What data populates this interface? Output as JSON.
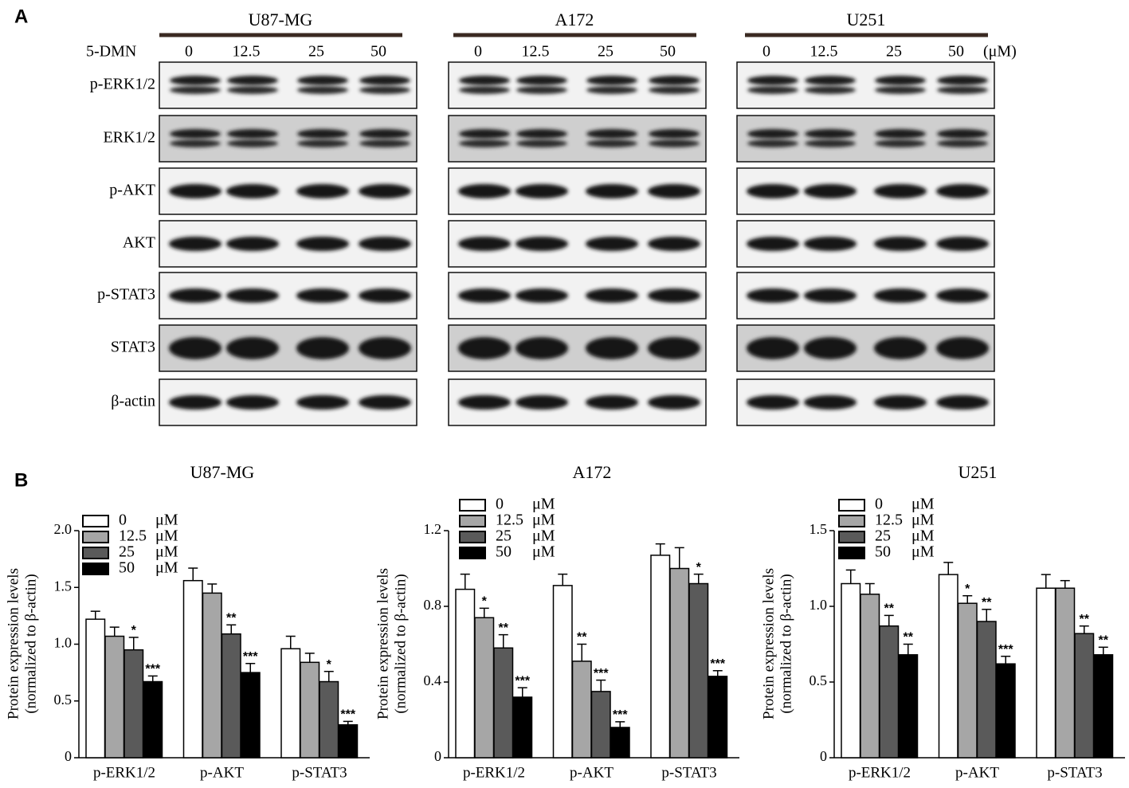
{
  "panel_a": {
    "label": "A",
    "treatment": "5-DMN",
    "unit": "(μM)",
    "cell_lines": [
      "U87-MG",
      "A172",
      "U251"
    ],
    "doses": [
      "0",
      "12.5",
      "25",
      "50"
    ],
    "proteins": [
      "p-ERK1/2",
      "ERK1/2",
      "p-AKT",
      "AKT",
      "p-STAT3",
      "STAT3",
      "β-actin"
    ]
  },
  "panel_b": {
    "label": "B"
  },
  "chart_data": [
    {
      "type": "bar",
      "title": "U87-MG",
      "ylabel": [
        "Protein expression levels",
        "(normalized to β-actin)"
      ],
      "categories": [
        "p-ERK1/2",
        "p-AKT",
        "p-STAT3"
      ],
      "legend_unit": "μM",
      "ylim": [
        0,
        2.0
      ],
      "yticks": [
        0,
        0.5,
        {
          "value": 1.0,
          "label": "1.0"
        },
        1.5,
        {
          "value": 2.0,
          "label": "2.0"
        }
      ],
      "series": [
        {
          "name": "0",
          "color": "#ffffff",
          "values": [
            1.22,
            1.56,
            0.96
          ],
          "errors": [
            0.07,
            0.11,
            0.11
          ],
          "significance": [
            null,
            null,
            null
          ]
        },
        {
          "name": "12.5",
          "color": "#a6a6a6",
          "values": [
            1.07,
            1.45,
            0.84
          ],
          "errors": [
            0.08,
            0.08,
            0.08
          ],
          "significance": [
            null,
            null,
            null
          ]
        },
        {
          "name": "25",
          "color": "#5a5a5a",
          "values": [
            0.95,
            1.09,
            0.67
          ],
          "errors": [
            0.11,
            0.08,
            0.09
          ],
          "significance": [
            "*",
            "**",
            "*"
          ]
        },
        {
          "name": "50",
          "color": "#000000",
          "values": [
            0.67,
            0.75,
            0.29
          ],
          "errors": [
            0.05,
            0.08,
            0.03
          ],
          "significance": [
            "***",
            "***",
            "***"
          ]
        }
      ]
    },
    {
      "type": "bar",
      "title": "A172",
      "ylabel": [
        "Protein expression levels",
        "(normalized to β-actin)"
      ],
      "categories": [
        "p-ERK1/2",
        "p-AKT",
        "p-STAT3"
      ],
      "legend_unit": "μM",
      "ylim": [
        0,
        1.2
      ],
      "yticks": [
        0,
        0.4,
        0.8,
        1.2
      ],
      "series": [
        {
          "name": "0",
          "color": "#ffffff",
          "values": [
            0.89,
            0.91,
            1.07
          ],
          "errors": [
            0.08,
            0.06,
            0.06
          ],
          "significance": [
            null,
            null,
            null
          ]
        },
        {
          "name": "12.5",
          "color": "#a6a6a6",
          "values": [
            0.74,
            0.51,
            1.0
          ],
          "errors": [
            0.05,
            0.09,
            0.11
          ],
          "significance": [
            "*",
            "**",
            null
          ]
        },
        {
          "name": "25",
          "color": "#5a5a5a",
          "values": [
            0.58,
            0.35,
            0.92
          ],
          "errors": [
            0.07,
            0.06,
            0.05
          ],
          "significance": [
            "**",
            "***",
            "*"
          ]
        },
        {
          "name": "50",
          "color": "#000000",
          "values": [
            0.32,
            0.16,
            0.43
          ],
          "errors": [
            0.05,
            0.03,
            0.03
          ],
          "significance": [
            "***",
            "***",
            "***"
          ]
        }
      ]
    },
    {
      "type": "bar",
      "title": "U251",
      "ylabel": [
        "Protein expression levels",
        "(normalized to β-actin)"
      ],
      "categories": [
        "p-ERK1/2",
        "p-AKT",
        "p-STAT3"
      ],
      "legend_unit": "μM",
      "ylim": [
        0,
        1.5
      ],
      "yticks": [
        0,
        0.5,
        {
          "value": 1.0,
          "label": "1.0"
        },
        1.5
      ],
      "series": [
        {
          "name": "0",
          "color": "#ffffff",
          "values": [
            1.15,
            1.21,
            1.12
          ],
          "errors": [
            0.09,
            0.08,
            0.09
          ],
          "significance": [
            null,
            null,
            null
          ]
        },
        {
          "name": "12.5",
          "color": "#a6a6a6",
          "values": [
            1.08,
            1.02,
            1.12
          ],
          "errors": [
            0.07,
            0.05,
            0.05
          ],
          "significance": [
            null,
            "*",
            null
          ]
        },
        {
          "name": "25",
          "color": "#5a5a5a",
          "values": [
            0.87,
            0.9,
            0.82
          ],
          "errors": [
            0.07,
            0.08,
            0.05
          ],
          "significance": [
            "**",
            "**",
            "**"
          ]
        },
        {
          "name": "50",
          "color": "#000000",
          "values": [
            0.68,
            0.62,
            0.68
          ],
          "errors": [
            0.07,
            0.05,
            0.05
          ],
          "significance": [
            "**",
            "***",
            "**"
          ]
        }
      ]
    }
  ]
}
